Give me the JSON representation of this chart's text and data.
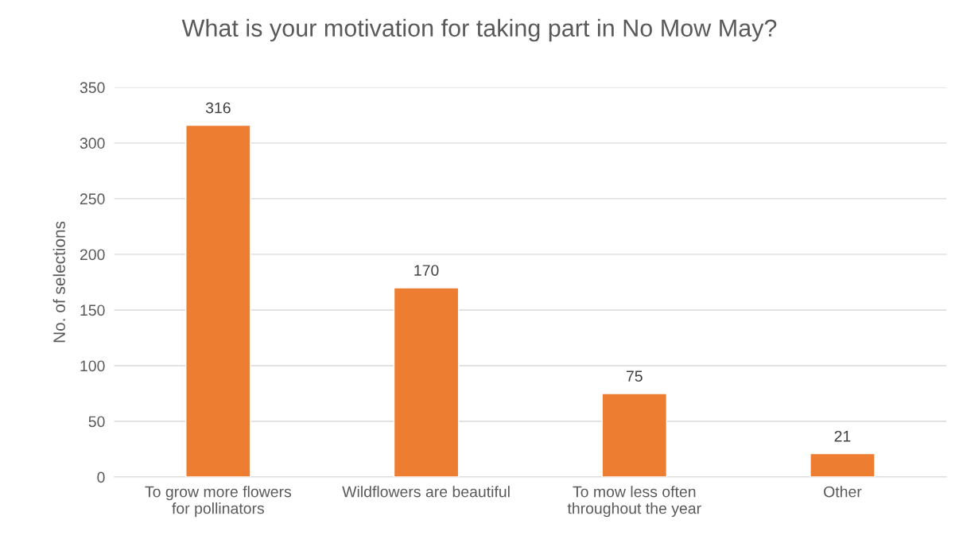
{
  "chart_data": {
    "type": "bar",
    "title": "What is your motivation for taking part in No Mow May?",
    "ylabel": "No. of selections",
    "categories": [
      "To grow more flowers\nfor pollinators",
      "Wildflowers are beautiful",
      "To mow less often\nthroughout the year",
      "Other"
    ],
    "values": [
      316,
      170,
      75,
      21
    ],
    "color": "#ed7d31",
    "ylim": [
      0,
      350
    ],
    "yticks": [
      0,
      50,
      100,
      150,
      200,
      250,
      300,
      350
    ],
    "grid": "y",
    "data_labels": true
  }
}
